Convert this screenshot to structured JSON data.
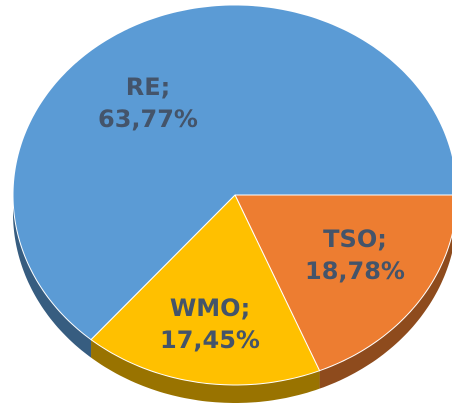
{
  "chart_data": {
    "type": "pie",
    "categories": [
      "RE;",
      "TSO;",
      "WMO;"
    ],
    "values": [
      63.77,
      18.78,
      17.45
    ],
    "value_labels": [
      "63,77%",
      "18,78%",
      "17,45%"
    ],
    "colors": [
      "#5b9bd5",
      "#ed7d31",
      "#ffc000"
    ],
    "start_slice": 1
  }
}
